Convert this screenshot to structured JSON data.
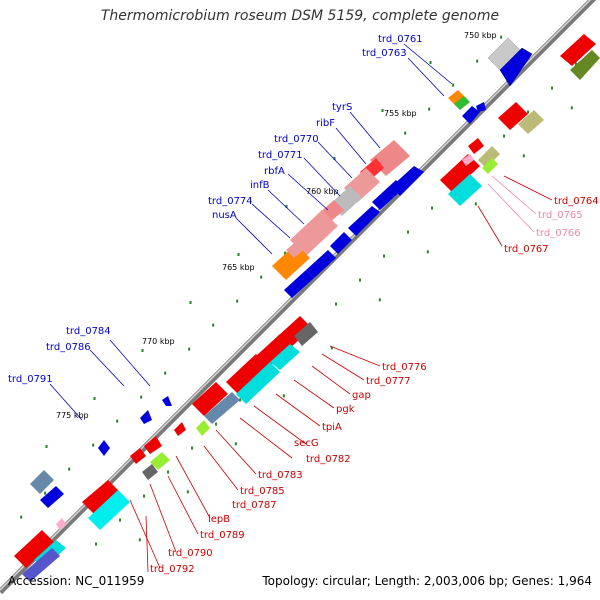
{
  "title": "Thermomicrobium roseum DSM 5159, complete genome",
  "footer": {
    "accession": "Accession: NC_011959",
    "summary": "Topology: circular; Length: 2,003,006 bp; Genes: 1,964"
  },
  "colors": {
    "forward_label": "#0000cc",
    "reverse_label": "#cc0000",
    "reverse_label_light": "#ee88aa",
    "backbone": "#888888",
    "tick_mark": "#228822"
  },
  "ticks": [
    "750 kbp",
    "755 kbp",
    "760 kbp",
    "765 kbp",
    "770 kbp",
    "775 kbp"
  ],
  "forward_labels": [
    "trd_0761",
    "trd_0763",
    "tyrS",
    "ribF",
    "trd_0770",
    "trd_0771",
    "rbfA",
    "infB",
    "trd_0774",
    "nusA",
    "trd_0784",
    "trd_0786",
    "trd_0791"
  ],
  "reverse_labels": [
    "trd_0764",
    "trd_0765",
    "trd_0766",
    "trd_0767",
    "trd_0776",
    "trd_0777",
    "gap",
    "pgk",
    "tpiA",
    "trd_0782",
    "secG",
    "trd_0783",
    "trd_0785",
    "trd_0787",
    "lepB",
    "trd_0789",
    "trd_0790",
    "trd_0792"
  ]
}
